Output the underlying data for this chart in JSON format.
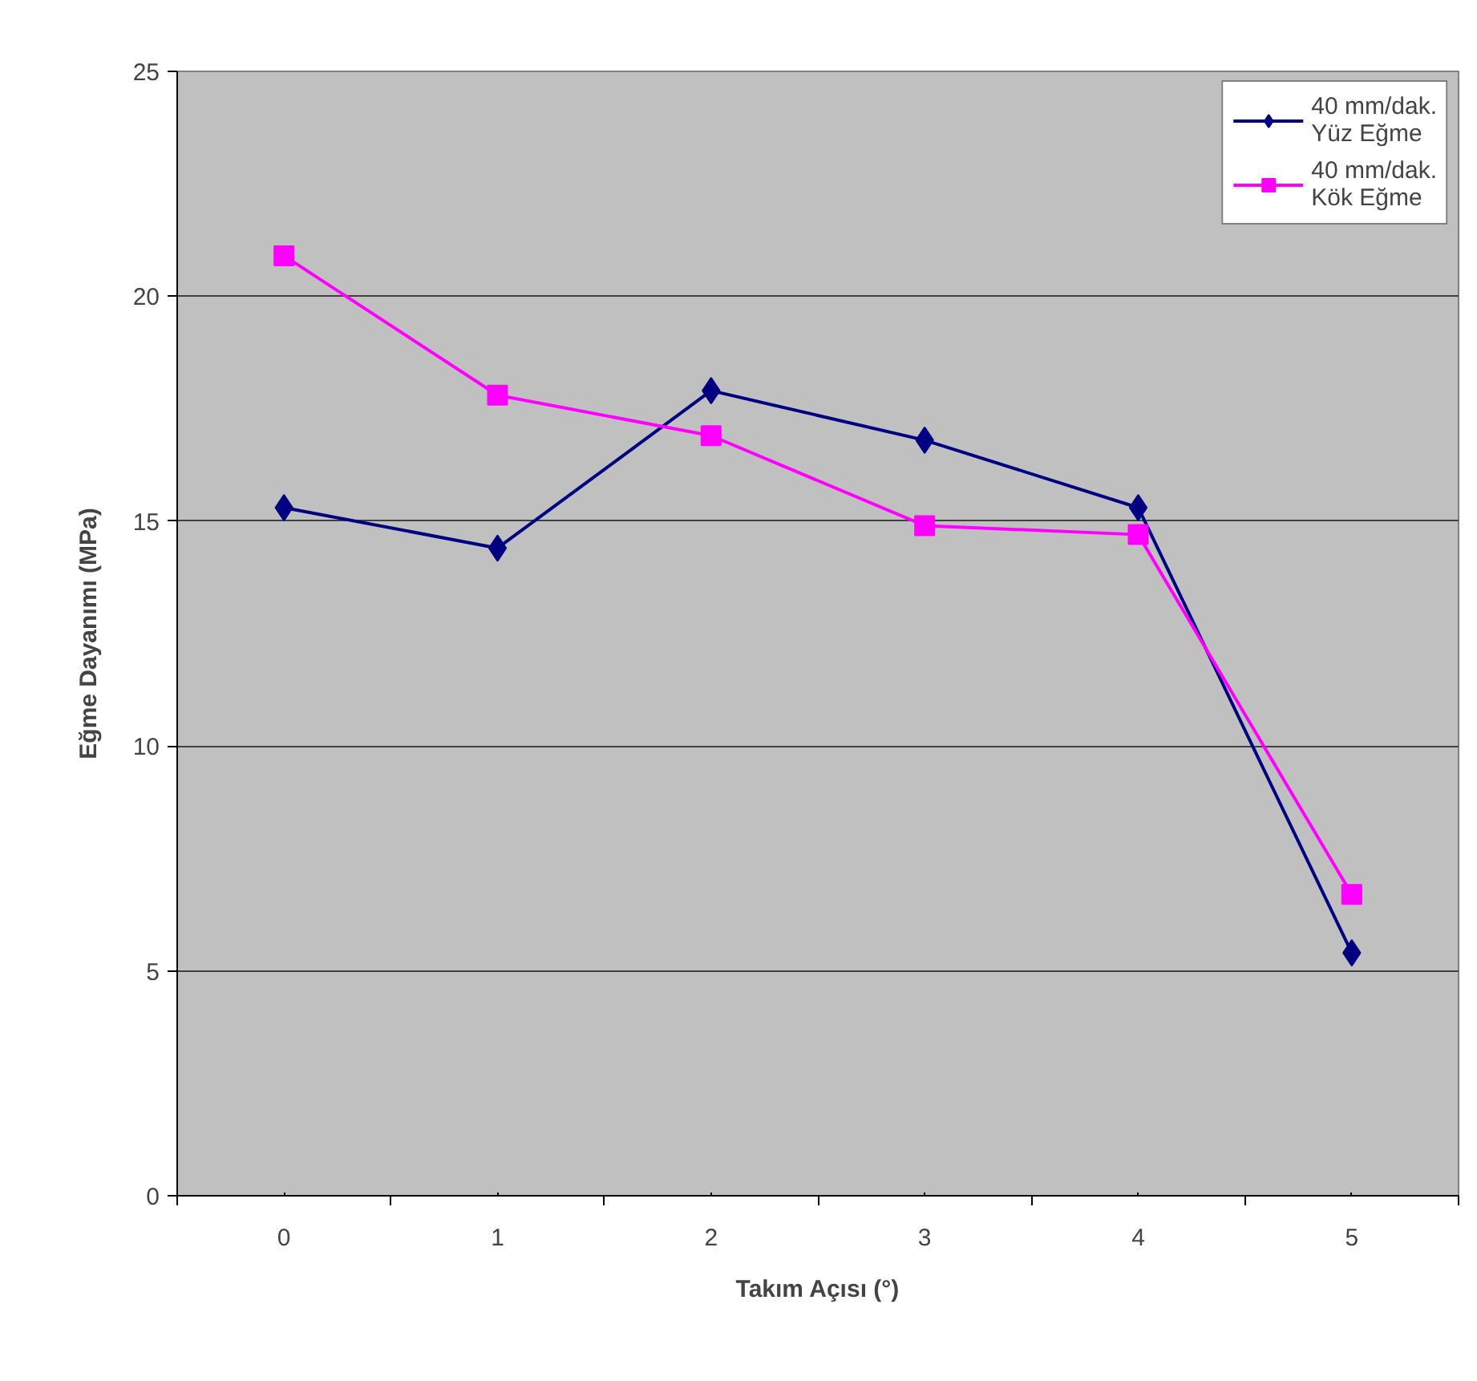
{
  "chart_data": {
    "type": "line",
    "xlabel": "Takım Açısı (°)",
    "ylabel": "Eğme Dayanımı (MPa)",
    "x": [
      0,
      1,
      2,
      3,
      4,
      5
    ],
    "xlim": [
      -0.5,
      5.5
    ],
    "xticks": [
      0,
      1,
      2,
      3,
      4,
      5
    ],
    "ylim": [
      0,
      25
    ],
    "yticks": [
      0,
      5,
      10,
      15,
      20,
      25
    ],
    "grid": "y",
    "legend": "top right",
    "line_style": "solid",
    "series": [
      {
        "name": "40 mm/dak. Yüz Eğme",
        "color": "#000080",
        "marker": "diamond",
        "values": [
          15.3,
          14.4,
          17.9,
          16.8,
          15.3,
          5.4
        ]
      },
      {
        "name": "40 mm/dak. Kök Eğme",
        "color": "#ff00ff",
        "marker": "square",
        "values": [
          20.9,
          17.8,
          16.9,
          14.9,
          14.7,
          6.7
        ]
      }
    ]
  }
}
